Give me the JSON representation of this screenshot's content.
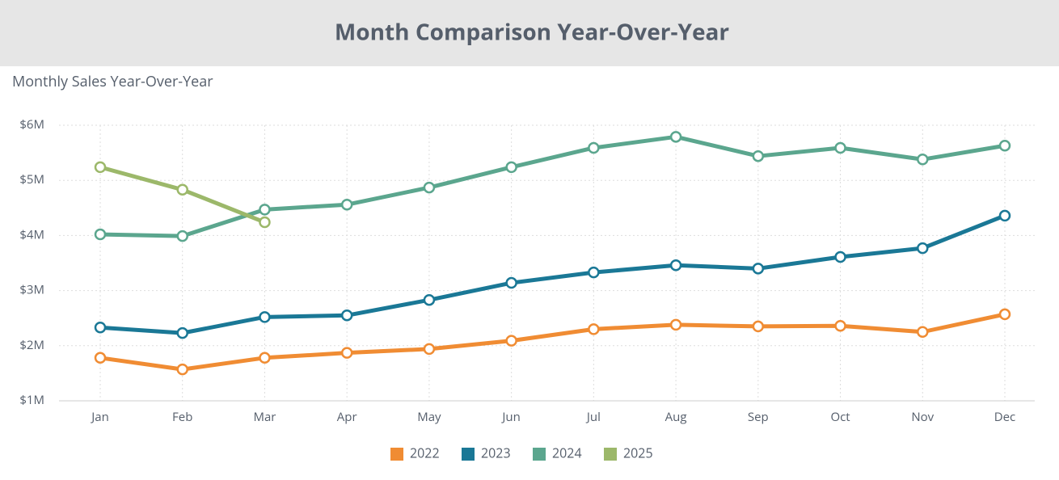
{
  "chart_data": {
    "type": "line",
    "title": "Month Comparison Year-Over-Year",
    "subtitle": "Monthly Sales Year-Over-Year",
    "categories": [
      "Jan",
      "Feb",
      "Mar",
      "Apr",
      "May",
      "Jun",
      "Jul",
      "Aug",
      "Sep",
      "Oct",
      "Nov",
      "Dec"
    ],
    "series": [
      {
        "name": "2022",
        "color": "#f08c33",
        "values": [
          1780000,
          1570000,
          1780000,
          1870000,
          1940000,
          2090000,
          2300000,
          2380000,
          2350000,
          2360000,
          2250000,
          2570000
        ]
      },
      {
        "name": "2023",
        "color": "#1a7896",
        "values": [
          2330000,
          2230000,
          2520000,
          2550000,
          2830000,
          3140000,
          3330000,
          3460000,
          3400000,
          3610000,
          3770000,
          4360000
        ]
      },
      {
        "name": "2024",
        "color": "#5ba68e",
        "values": [
          4020000,
          3990000,
          4470000,
          4560000,
          4870000,
          5240000,
          5590000,
          5790000,
          5440000,
          5590000,
          5380000,
          5630000
        ]
      },
      {
        "name": "2025",
        "color": "#9cb86a",
        "values": [
          5240000,
          4830000,
          4240000,
          null,
          null,
          null,
          null,
          null,
          null,
          null,
          null,
          null
        ]
      }
    ],
    "ylim": [
      1000000,
      6000000
    ],
    "yticks": [
      {
        "value": 1000000,
        "label": "$1M"
      },
      {
        "value": 2000000,
        "label": "$2M"
      },
      {
        "value": 3000000,
        "label": "$3M"
      },
      {
        "value": 4000000,
        "label": "$4M"
      },
      {
        "value": 5000000,
        "label": "$5M"
      },
      {
        "value": 6000000,
        "label": "$6M"
      }
    ],
    "grid": true,
    "legend": "bottom"
  }
}
